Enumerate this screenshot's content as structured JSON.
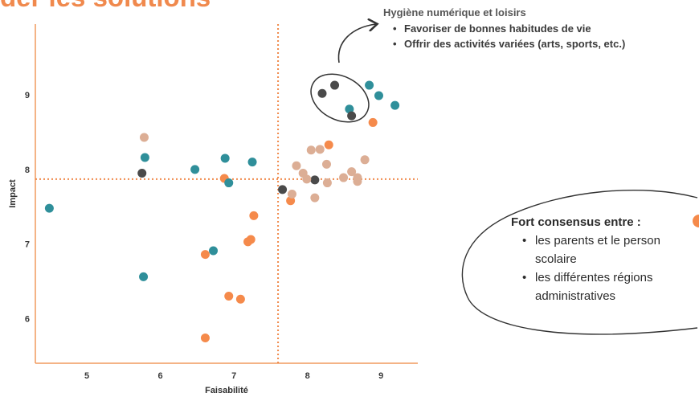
{
  "page": {
    "title": "der les solutions"
  },
  "callout_top": {
    "title": "Hygiène numérique et loisirs",
    "items": [
      "Favoriser de bonnes habitudes de vie",
      "Offrir des activités variées (arts, sports, etc.)"
    ]
  },
  "callout_right": {
    "title": "Fort consensus entre :",
    "items": [
      [
        "les parents et le person",
        "scolaire"
      ],
      [
        "les différentes régions",
        "administratives"
      ]
    ]
  },
  "colors": {
    "orange": "#f58a4b",
    "teal": "#2f8f9a",
    "dark": "#4a4a4a",
    "beige": "#dcae95",
    "axis": "#f09a5f",
    "reference_line": "#f08a4b"
  },
  "chart_data": {
    "type": "scatter",
    "xlabel": "Faisabilité",
    "ylabel": "Impact",
    "xlim": [
      4.3,
      9.5
    ],
    "ylim": [
      5.4,
      9.95
    ],
    "xticks": [
      5,
      6,
      7,
      8,
      9
    ],
    "yticks": [
      6,
      7,
      8,
      9
    ],
    "reference_lines": {
      "x": 7.6,
      "y": 7.87
    },
    "grid": false,
    "legend": "none",
    "series": [
      {
        "color": "orange",
        "points": [
          [
            6.61,
            5.74
          ],
          [
            6.61,
            6.86
          ],
          [
            6.93,
            6.3
          ],
          [
            7.09,
            6.26
          ],
          [
            6.87,
            7.88
          ],
          [
            7.19,
            7.03
          ],
          [
            7.23,
            7.06
          ],
          [
            7.27,
            7.38
          ],
          [
            7.77,
            7.58
          ],
          [
            8.29,
            8.33
          ],
          [
            8.89,
            8.63
          ]
        ]
      },
      {
        "color": "teal",
        "points": [
          [
            4.49,
            7.48
          ],
          [
            5.77,
            6.56
          ],
          [
            5.79,
            8.16
          ],
          [
            6.47,
            8.0
          ],
          [
            6.72,
            6.91
          ],
          [
            6.88,
            8.15
          ],
          [
            6.93,
            7.82
          ],
          [
            7.25,
            8.1
          ],
          [
            8.57,
            8.81
          ],
          [
            8.84,
            9.13
          ],
          [
            8.97,
            8.99
          ],
          [
            9.19,
            8.86
          ]
        ]
      },
      {
        "color": "dark",
        "points": [
          [
            5.75,
            7.95
          ],
          [
            7.66,
            7.73
          ],
          [
            8.1,
            7.86
          ],
          [
            8.2,
            9.02
          ],
          [
            8.37,
            9.13
          ],
          [
            8.6,
            8.72
          ]
        ]
      },
      {
        "color": "beige",
        "points": [
          [
            5.78,
            8.43
          ],
          [
            7.79,
            7.67
          ],
          [
            7.85,
            8.05
          ],
          [
            7.94,
            7.95
          ],
          [
            7.99,
            7.87
          ],
          [
            8.05,
            8.26
          ],
          [
            8.1,
            7.62
          ],
          [
            8.17,
            8.27
          ],
          [
            8.27,
            7.82
          ],
          [
            8.26,
            8.07
          ],
          [
            8.49,
            7.89
          ],
          [
            8.6,
            7.97
          ],
          [
            8.68,
            7.84
          ],
          [
            8.68,
            7.89
          ],
          [
            8.78,
            8.13
          ]
        ]
      }
    ]
  }
}
